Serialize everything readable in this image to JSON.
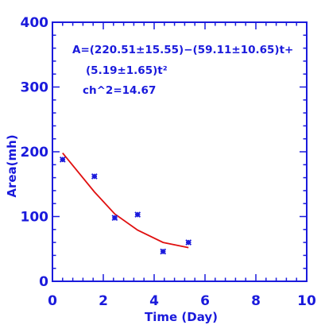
{
  "chart_data": {
    "type": "scatter",
    "title": "",
    "xlabel": "Time (Day)",
    "ylabel": "Area(mh)",
    "xlim": [
      0,
      10
    ],
    "ylim": [
      0,
      400
    ],
    "x_ticks": [
      0,
      2,
      4,
      6,
      8,
      10
    ],
    "y_ticks": [
      0,
      100,
      200,
      300,
      400
    ],
    "grid": false,
    "series": [
      {
        "kind": "points",
        "marker": "asterisk",
        "x": [
          0.4,
          1.65,
          2.45,
          3.35,
          4.35,
          5.35
        ],
        "y": [
          188,
          162,
          98,
          103,
          46,
          60
        ]
      },
      {
        "kind": "fit-line",
        "x": [
          0.4,
          1.65,
          2.45,
          3.35,
          4.35,
          5.35
        ],
        "y": [
          198,
          138,
          104,
          79,
          60,
          52
        ]
      }
    ],
    "annotations": [
      "A=(220.51±15.55)−(59.11±10.65)t+",
      "(5.19±1.65)t²",
      "ch^2=14.67"
    ],
    "colors": {
      "axes": "#1a1adc",
      "points": "#1a1adc",
      "fit": "#e01010",
      "text": "#1a1adc"
    }
  }
}
